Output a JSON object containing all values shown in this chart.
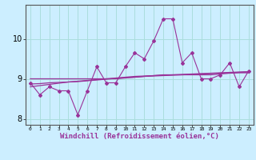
{
  "xlabel": "Windchill (Refroidissement éolien,°C)",
  "bg_color": "#cceeff",
  "grid_color": "#aadddd",
  "line_color": "#993399",
  "x": [
    0,
    1,
    2,
    3,
    4,
    5,
    6,
    7,
    8,
    9,
    10,
    11,
    12,
    13,
    14,
    15,
    16,
    17,
    18,
    19,
    20,
    21,
    22,
    23
  ],
  "y_main": [
    8.9,
    8.6,
    8.8,
    8.7,
    8.7,
    8.1,
    8.7,
    9.3,
    8.9,
    8.9,
    9.3,
    9.65,
    9.5,
    9.95,
    10.5,
    10.5,
    9.4,
    9.65,
    9.0,
    9.0,
    9.1,
    9.4,
    8.8,
    9.2
  ],
  "y_line1": [
    9.0,
    9.0,
    9.0,
    9.0,
    9.0,
    9.0,
    9.0,
    9.0,
    9.0,
    9.0,
    9.02,
    9.04,
    9.06,
    9.08,
    9.1,
    9.1,
    9.1,
    9.1,
    9.1,
    9.1,
    9.12,
    9.14,
    9.15,
    9.15
  ],
  "y_line2": [
    8.87,
    8.88,
    8.9,
    8.91,
    8.92,
    8.93,
    8.95,
    8.97,
    8.99,
    9.01,
    9.03,
    9.04,
    9.06,
    9.07,
    9.08,
    9.09,
    9.1,
    9.11,
    9.12,
    9.13,
    9.14,
    9.15,
    9.16,
    9.17
  ],
  "y_line3": [
    8.8,
    8.83,
    8.86,
    8.89,
    8.92,
    8.94,
    8.96,
    8.98,
    9.0,
    9.02,
    9.04,
    9.06,
    9.07,
    9.08,
    9.09,
    9.1,
    9.11,
    9.12,
    9.13,
    9.14,
    9.15,
    9.16,
    9.17,
    9.18
  ],
  "ylim": [
    7.85,
    10.85
  ],
  "yticks": [
    8,
    9,
    10
  ],
  "xtick_labels": [
    "0",
    "1",
    "2",
    "3",
    "4",
    "5",
    "6",
    "7",
    "8",
    "9",
    "10",
    "11",
    "12",
    "13",
    "14",
    "15",
    "16",
    "17",
    "18",
    "19",
    "20",
    "21",
    "22",
    "23"
  ]
}
